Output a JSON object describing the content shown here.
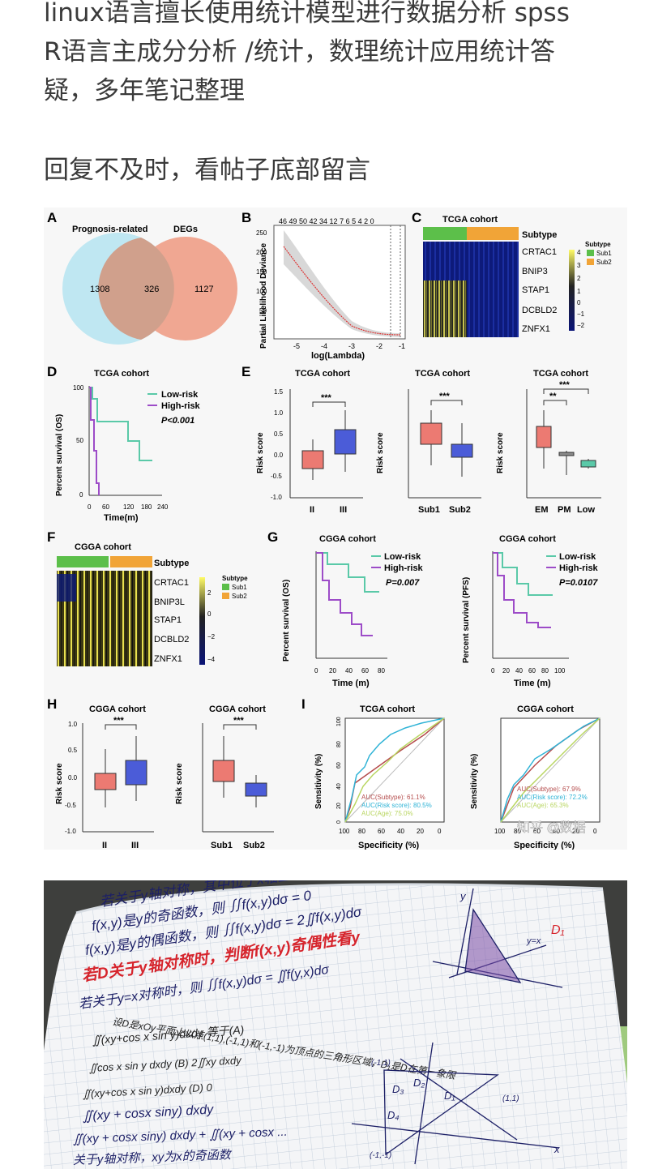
{
  "post": {
    "paragraph_1_lines": [
      "linux语言擅长使用统计模型进行数据分析 spss",
      "R语言主成分分析 /统计，数理统计应用统计答",
      "疑，多年笔记整理"
    ],
    "paragraph_2": "回复不及时，看帖子底部留言"
  },
  "figure": {
    "panel_letters": [
      "A",
      "B",
      "C",
      "D",
      "E",
      "F",
      "G",
      "H",
      "I"
    ],
    "panel_a": {
      "left_label": "Prognosis-related",
      "right_label": "DEGs",
      "left_only": "1308",
      "overlap": "326",
      "right_only": "1127"
    },
    "panel_b": {
      "ylabel": "Partial Likelihood Deviance",
      "xlabel": "log(Lambda)",
      "top_ticks": "46  49  50  42  34  12  7 6 5 4 2 0",
      "xticks": [
        "-5",
        "-4",
        "-3",
        "-2",
        "-1"
      ],
      "yticks": [
        "250",
        "200",
        "150",
        "100",
        "50",
        "0"
      ]
    },
    "panel_c": {
      "title": "TCGA cohort",
      "subtype_label": "Subtype",
      "genes": [
        "CRTAC1",
        "BNIP3",
        "STAP1",
        "DCBLD2",
        "ZNFX1"
      ],
      "scale": [
        "4",
        "3",
        "2",
        "1",
        "0",
        "−1",
        "−2"
      ],
      "legend_title": "Subtype",
      "legend_items": [
        "Sub1",
        "Sub2"
      ]
    },
    "panel_d": {
      "title": "TCGA cohort",
      "ylabel": "Percent survival (OS)",
      "xlabel": "Time(m)",
      "legend": [
        "Low-risk",
        "High-risk"
      ],
      "pvalue": "P<0.001",
      "xticks": [
        "0",
        "60",
        "120",
        "180",
        "240"
      ],
      "yticks": [
        "100",
        "50",
        "0"
      ]
    },
    "panel_e": [
      {
        "title": "TCGA cohort",
        "ylabel": "Risk score",
        "groups": [
          "II",
          "III"
        ],
        "sig": [
          "***"
        ]
      },
      {
        "title": "TCGA cohort",
        "ylabel": "Risk score",
        "groups": [
          "Sub1",
          "Sub2"
        ],
        "sig": [
          "***"
        ]
      },
      {
        "title": "TCGA cohort",
        "ylabel": "Risk score",
        "groups": [
          "EM",
          "PM",
          "Low"
        ],
        "sig": [
          "**",
          "***"
        ]
      }
    ],
    "risk_yticks": [
      "1.5",
      "1.0",
      "0.5",
      "0.0",
      "-0.5",
      "-1.0"
    ],
    "panel_f": {
      "title": "CGGA cohort",
      "subtype_label": "Subtype",
      "genes": [
        "CRTAC1",
        "BNIP3L",
        "STAP1",
        "DCBLD2",
        "ZNFX1"
      ],
      "scale": [
        "2",
        "0",
        "−2",
        "−4"
      ],
      "legend_title": "Subtype",
      "legend_items": [
        "Sub1",
        "Sub2"
      ]
    },
    "panel_g": [
      {
        "title": "CGGA cohort",
        "ylabel": "Percent survival (OS)",
        "xlabel": "Time (m)",
        "legend": [
          "Low-risk",
          "High-risk"
        ],
        "pvalue": "P=0.007",
        "xticks": [
          "0",
          "20",
          "40",
          "60",
          "80"
        ]
      },
      {
        "title": "CGGA cohort",
        "ylabel": "Percent survival (PFS)",
        "xlabel": "Time (m)",
        "legend": [
          "Low-risk",
          "High-risk"
        ],
        "pvalue": "P=0.0107",
        "xticks": [
          "0",
          "20",
          "40",
          "60",
          "80",
          "100"
        ]
      }
    ],
    "panel_h": [
      {
        "title": "CGGA cohort",
        "ylabel": "Risk score",
        "groups": [
          "II",
          "III"
        ],
        "sig": "***"
      },
      {
        "title": "CGGA cohort",
        "ylabel": "Risk score",
        "groups": [
          "Sub1",
          "Sub2"
        ],
        "sig": "***"
      }
    ],
    "h_yticks": [
      "1.0",
      "0.5",
      "0.0",
      "-0.5",
      "-1.0"
    ],
    "panel_i": [
      {
        "title": "TCGA cohort",
        "ylabel": "Sensitivity (%)",
        "xlabel": "Specificity (%)",
        "auc": [
          "AUC(Subtype): 61.1%",
          "AUC(Risk score): 80.5%",
          "AUC(Age): 75.0%"
        ],
        "xticks": [
          "100",
          "80",
          "60",
          "40",
          "20",
          "0"
        ]
      },
      {
        "title": "CGGA cohort",
        "ylabel": "Sensitivity (%)",
        "xlabel": "Specificity (%)",
        "auc": [
          "AUC(Subtype): 67.9%",
          "AUC(Risk score): 72.2%",
          "AUC(Age): 65.3%"
        ],
        "xticks": [
          "100",
          "80",
          "60",
          "40",
          "20",
          "0"
        ]
      }
    ],
    "roc_yticks": [
      "100",
      "80",
      "60",
      "40",
      "20",
      "0"
    ],
    "watermark": "知乎 @数据"
  },
  "notebook": {
    "lines": [
      "若关于y轴对称，其中位于x轴上侧区域为D,",
      "f(x,y)是y的奇函数，则 ∬f(x,y)dσ = 0",
      "f(x,y)是y的偶函数，则 ∬f(x,y)dσ = 2∬f(x,y)dσ",
      "若D关于y轴对称时，判断f(x,y)奇偶性看y",
      "若关于y=x对称时，则 ∬f(x,y)dσ = ∬f(y,x)dσ",
      "设D是xOy平面上以点(1,1),(-1,1)和(-1,-1)为顶点的三角形区域，D₁是D在第一象限",
      "∬(xy+cos x sin y)dxdy 等于(A)",
      "∬cos x sin y dxdy          (B) 2∬xy dxdy",
      "∬(xy+cos x sin y)dxdy      (D) 0",
      "∬(xy + cosx siny) dxdy",
      "∬(xy + cosx siny) dxdy + ∬(xy + cosx ...",
      "关于y轴对称，xy为x的奇函数"
    ],
    "diagram_labels": [
      "D₁",
      "D₂",
      "D₃",
      "D₄",
      "(-1,1)",
      "(1,1)",
      "(-1,-1)",
      "x",
      "y",
      "y=x",
      "D₁"
    ]
  }
}
